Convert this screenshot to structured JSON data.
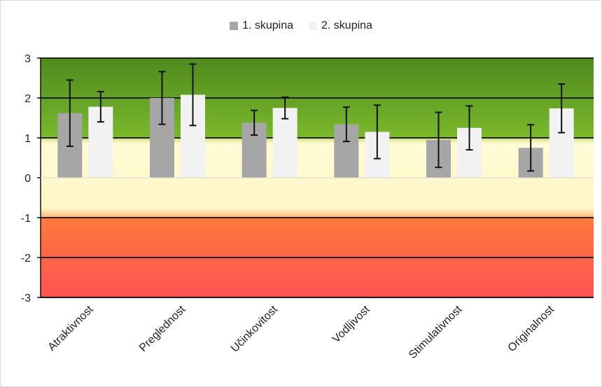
{
  "chart_data": {
    "type": "bar",
    "categories": [
      "Atraktivnost",
      "Preglednost",
      "Učinkovitost",
      "Vodljivost",
      "Stimulativnost",
      "Originalnost"
    ],
    "series": [
      {
        "name": "1. skupina",
        "color": "#a6a6a6",
        "values": [
          1.62,
          2.0,
          1.38,
          1.34,
          0.95,
          0.75
        ],
        "error": [
          0.83,
          0.66,
          0.31,
          0.43,
          0.69,
          0.58
        ]
      },
      {
        "name": "2. skupina",
        "color": "#f2f2f2",
        "values": [
          1.78,
          2.08,
          1.75,
          1.15,
          1.25,
          1.74
        ],
        "error": [
          0.38,
          0.77,
          0.27,
          0.67,
          0.55,
          0.61
        ]
      }
    ],
    "ylim": [
      -3,
      3
    ],
    "yticks": [
      "3",
      "2",
      "1",
      "0",
      "-1",
      "-2",
      "-3"
    ],
    "legend_position": "top-center",
    "grid": true,
    "background_bands": [
      {
        "from": 1,
        "to": 3,
        "colors": [
          "#4e8a1e",
          "#7bb82c"
        ]
      },
      {
        "from": -1,
        "to": 1,
        "colors": [
          "#fffbd4",
          "#fff6c8"
        ]
      },
      {
        "from": -3,
        "to": -1,
        "colors": [
          "#ff7a3c",
          "#ff5252"
        ]
      }
    ]
  }
}
